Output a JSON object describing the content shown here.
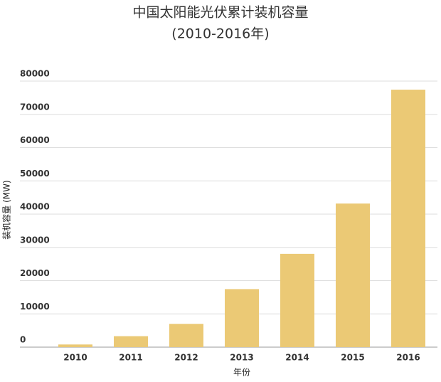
{
  "chart_data": {
    "type": "bar",
    "title": "中国太阳能光伏累计装机容量",
    "subtitle": "(2010-2016年)",
    "x_label": "年份",
    "y_label": "装机容量 (MW)",
    "categories": [
      "2010",
      "2011",
      "2012",
      "2013",
      "2014",
      "2015",
      "2016"
    ],
    "values": [
      800,
      3300,
      7000,
      17450,
      28050,
      43180,
      77420
    ],
    "color": "#ebc975",
    "ylim": [
      0,
      80000
    ],
    "yticks": [
      0,
      10000,
      20000,
      30000,
      40000,
      50000,
      60000,
      70000,
      80000
    ],
    "grid": true
  }
}
